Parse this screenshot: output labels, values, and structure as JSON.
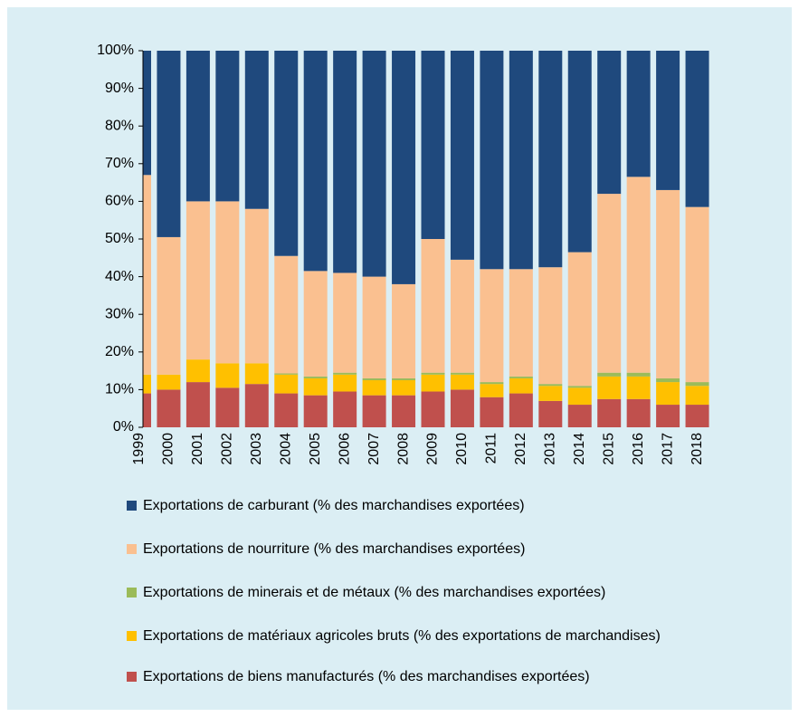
{
  "chart_data": {
    "type": "stacked_bar",
    "categories": [
      "1999",
      "2000",
      "2001",
      "2002",
      "2003",
      "2004",
      "2005",
      "2006",
      "2007",
      "2008",
      "2009",
      "2010",
      "2011",
      "2012",
      "2013",
      "2014",
      "2015",
      "2016",
      "2017",
      "2018"
    ],
    "series": [
      {
        "name": "Exportations de carburant (% des marchandises exportées)",
        "color": "#1f497d",
        "values": [
          33,
          49.5,
          40,
          40,
          42,
          54.5,
          58.5,
          59,
          60,
          62,
          50,
          55.5,
          58,
          58,
          57.5,
          53.5,
          38,
          33.5,
          37,
          41.5
        ]
      },
      {
        "name": "Exportations de nourriture (% des marchandises exportées)",
        "color": "#fac090",
        "values": [
          53,
          36.5,
          42,
          43,
          41,
          31.2,
          28,
          26.5,
          27,
          25,
          35.5,
          30,
          30,
          28.5,
          31,
          35.5,
          47.5,
          52,
          50,
          46.5
        ]
      },
      {
        "name": "Exportations de minerais et de métaux (% des marchandises exportées)",
        "color": "#9bbb59",
        "values": [
          0,
          0,
          0,
          0,
          0,
          0.3,
          0.5,
          0.5,
          0.5,
          0.5,
          0.5,
          0.5,
          0.5,
          0.5,
          0.5,
          0.5,
          1,
          1,
          1,
          1
        ]
      },
      {
        "name": "Exportations de matériaux agricoles bruts (% des exportations de marchandises)",
        "color": "#ffc000",
        "values": [
          5,
          4,
          6,
          6.5,
          5.5,
          5,
          4.5,
          4.5,
          4,
          4,
          4.5,
          4,
          3.5,
          4,
          4,
          4.5,
          6,
          6,
          6,
          5
        ]
      },
      {
        "name": "Exportations de biens manufacturés (% des marchandises exportées)",
        "color": "#c0504d",
        "values": [
          9,
          10,
          12,
          10.5,
          11.5,
          9,
          8.5,
          9.5,
          8.5,
          8.5,
          9.5,
          10,
          8,
          9,
          7,
          6,
          7.5,
          7.5,
          6,
          6
        ]
      }
    ],
    "ylim": [
      0,
      100
    ],
    "yticks": [
      {
        "value": 0,
        "label": "0%"
      },
      {
        "value": 10,
        "label": "10%"
      },
      {
        "value": 20,
        "label": "20%"
      },
      {
        "value": 30,
        "label": "30%"
      },
      {
        "value": 40,
        "label": "40%"
      },
      {
        "value": 50,
        "label": "50%"
      },
      {
        "value": 60,
        "label": "60%"
      },
      {
        "value": 70,
        "label": "70%"
      },
      {
        "value": 80,
        "label": "80%"
      },
      {
        "value": 90,
        "label": "90%"
      },
      {
        "value": 100,
        "label": "100%"
      }
    ],
    "stacked": true,
    "legend": "bottom"
  }
}
